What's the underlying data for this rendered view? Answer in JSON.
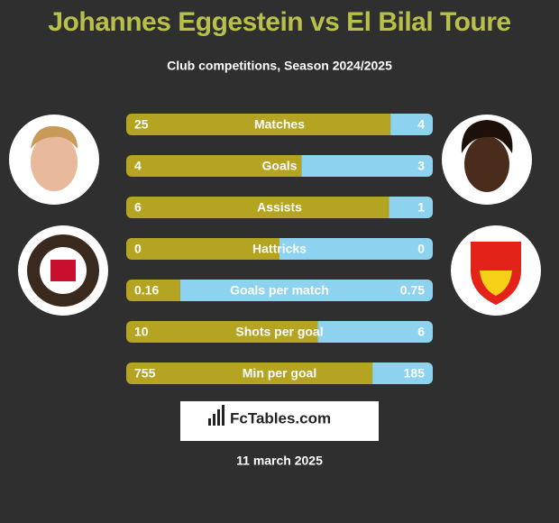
{
  "header": {
    "title": "Johannes Eggestein vs El Bilal Toure",
    "subtitle": "Club competitions, Season 2024/2025"
  },
  "rows": [
    {
      "label": "Matches",
      "left": 25,
      "right": 4
    },
    {
      "label": "Goals",
      "left": 4,
      "right": 3
    },
    {
      "label": "Assists",
      "left": 6,
      "right": 1
    },
    {
      "label": "Hattricks",
      "left": 0,
      "right": 0
    },
    {
      "label": "Goals per match",
      "left": 0.16,
      "right": 0.75
    },
    {
      "label": "Shots per goal",
      "left": 10,
      "right": 6
    },
    {
      "label": "Min per goal",
      "left": 755,
      "right": 185
    }
  ],
  "colors": {
    "left": "#b5a322",
    "right": "#8dd3ef"
  },
  "brand": "FcTables.com",
  "date": "11 march 2025"
}
